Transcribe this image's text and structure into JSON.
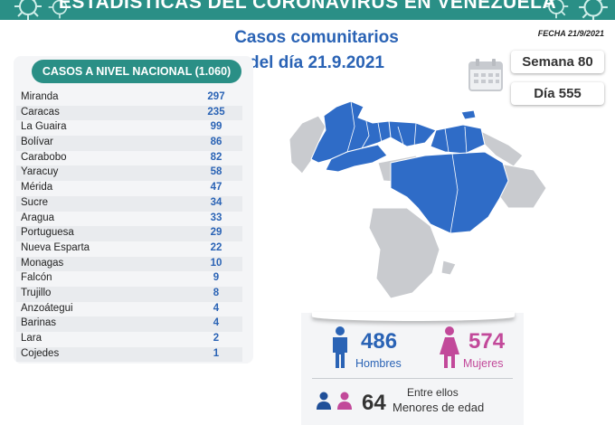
{
  "header": {
    "title": "ESTADÍSTICAS DEL CORONAVIRUS EN VENEZUELA",
    "banner_color": "#2a8f86"
  },
  "subheading": {
    "line1": "Casos comunitarios",
    "line2": "del día 21.9.2021"
  },
  "date": "FECHA 21/9/2021",
  "calendar_icon": "calendar-icon",
  "week": "Semana 80",
  "day": "Día 555",
  "table": {
    "title": "CASOS A NIVEL NACIONAL (1.060)",
    "rows": [
      {
        "state": "Miranda",
        "cases": "297"
      },
      {
        "state": "Caracas",
        "cases": "235"
      },
      {
        "state": "La Guaira",
        "cases": "99"
      },
      {
        "state": "Bolívar",
        "cases": "86"
      },
      {
        "state": "Carabobo",
        "cases": "82"
      },
      {
        "state": "Yaracuy",
        "cases": "58"
      },
      {
        "state": "Mérida",
        "cases": "47"
      },
      {
        "state": "Sucre",
        "cases": "34"
      },
      {
        "state": "Aragua",
        "cases": "33"
      },
      {
        "state": "Portuguesa",
        "cases": "29"
      },
      {
        "state": "Nueva Esparta",
        "cases": "22"
      },
      {
        "state": "Monagas",
        "cases": "10"
      },
      {
        "state": "Falcón",
        "cases": "9"
      },
      {
        "state": "Trujillo",
        "cases": "8"
      },
      {
        "state": "Anzoátegui",
        "cases": "4"
      },
      {
        "state": "Barinas",
        "cases": "4"
      },
      {
        "state": "Lara",
        "cases": "2"
      },
      {
        "state": "Cojedes",
        "cases": "1"
      }
    ]
  },
  "map": {
    "affected_color": "#2f6cc7",
    "unaffected_color": "#c9cbcf"
  },
  "stats": {
    "men_count": "486",
    "men_label": "Hombres",
    "men_color": "#2a63b5",
    "women_count": "574",
    "women_label": "Mujeres",
    "women_color": "#c2499a",
    "among_label": "Entre ellos",
    "minors_count": "64",
    "minors_label": "Menores de edad"
  }
}
